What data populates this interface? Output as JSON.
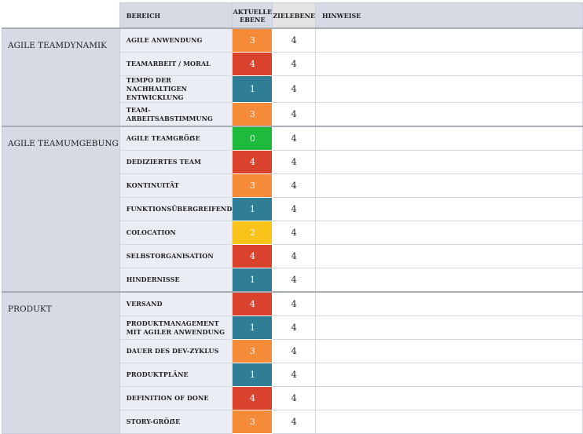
{
  "header": {
    "bereich": "BEREICH",
    "aktuelle_ebene_line1": "AKTUELLE",
    "aktuelle_ebene_line2": "EBENE",
    "zielebene": "ZIELEBENE",
    "hinweise": "HINWEISE"
  },
  "colors": {
    "level_0": "#1dba3d",
    "level_1": "#2f7e96",
    "level_2": "#f9c31a",
    "level_3": "#f68b3a",
    "level_4": "#d9432e"
  },
  "groups": [
    {
      "category": "AGILE TEAMDYNAMIK",
      "rows": [
        {
          "area": "AGILE ANWENDUNG",
          "current": "3",
          "target": "4",
          "notes": ""
        },
        {
          "area": "TEAMARBEIT / MORAL",
          "current": "4",
          "target": "4",
          "notes": ""
        },
        {
          "area": "TEMPO DER NACHHALTIGEN ENTWICKLUNG",
          "current": "1",
          "target": "4",
          "notes": ""
        },
        {
          "area": "TEAM-ARBEITSABSTIMMUNG",
          "current": "3",
          "target": "4",
          "notes": ""
        }
      ]
    },
    {
      "category": "AGILE TEAMUMGEBUNG",
      "rows": [
        {
          "area": "AGILE TEAMGRÖẞE",
          "current": "0",
          "target": "4",
          "notes": ""
        },
        {
          "area": "DEDIZIERTES TEAM",
          "current": "4",
          "target": "4",
          "notes": ""
        },
        {
          "area": "KONTINUITÄT",
          "current": "3",
          "target": "4",
          "notes": ""
        },
        {
          "area": "FUNKTIONSÜBERGREIFEND",
          "current": "1",
          "target": "4",
          "notes": ""
        },
        {
          "area": "COLOCATION",
          "current": "2",
          "target": "4",
          "notes": ""
        },
        {
          "area": "SELBSTORGANISATION",
          "current": "4",
          "target": "4",
          "notes": ""
        },
        {
          "area": "HINDERNISSE",
          "current": "1",
          "target": "4",
          "notes": ""
        }
      ]
    },
    {
      "category": "PRODUKT",
      "rows": [
        {
          "area": "VERSAND",
          "current": "4",
          "target": "4",
          "notes": ""
        },
        {
          "area": "PRODUKTMANAGEMENT MIT AGILER ANWENDUNG",
          "current": "1",
          "target": "4",
          "notes": ""
        },
        {
          "area": "DAUER DES DEV-ZYKLUS",
          "current": "3",
          "target": "4",
          "notes": ""
        },
        {
          "area": "PRODUKTPLÄNE",
          "current": "1",
          "target": "4",
          "notes": ""
        },
        {
          "area": "DEFINITION OF DONE",
          "current": "4",
          "target": "4",
          "notes": ""
        },
        {
          "area": "STORY-GRÖẞE",
          "current": "3",
          "target": "4",
          "notes": ""
        }
      ]
    }
  ]
}
